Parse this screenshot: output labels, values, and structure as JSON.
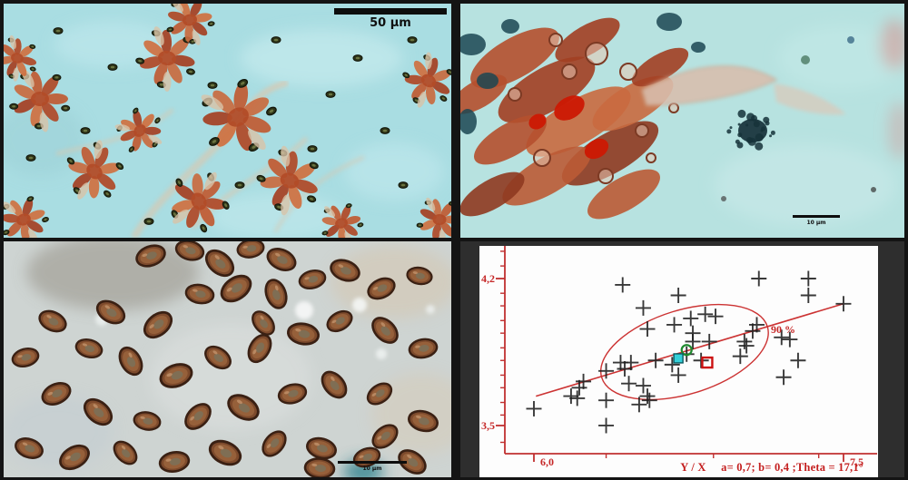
{
  "figure": {
    "title": "Four-panel mycological figure: stained micrographs and spore-measurement scatter plot",
    "panels": {
      "top_left": {
        "type": "micrograph",
        "scale_bar": "50 µm"
      },
      "top_right": {
        "type": "micrograph",
        "scale_bar": "10 µm"
      },
      "bottom_left": {
        "type": "micrograph",
        "scale_bar": "10 µm"
      },
      "bottom_right": {
        "type": "scatter-plot"
      }
    }
  },
  "chart_data": {
    "type": "scatter",
    "title": "",
    "xlabel": "",
    "ylabel": "",
    "grid": false,
    "legend_position": "none",
    "xlim": [
      5.74,
      7.67
    ],
    "ylim": [
      3.33,
      4.36
    ],
    "x_ticks": [
      {
        "value": 6.0,
        "label": "6,0"
      },
      {
        "value": 7.5,
        "label": "7,5"
      }
    ],
    "y_ticks": [
      {
        "value": 4.2,
        "label": "4,2"
      },
      {
        "value": 3.5,
        "label": "3,5"
      }
    ],
    "x_minor_ticks": [
      6.35,
      6.87,
      7.38
    ],
    "y_minor_ticks": [
      4.33,
      4.26,
      4.13,
      4.07,
      4.0,
      3.94,
      3.87,
      3.81,
      3.74,
      3.68,
      3.61,
      3.55,
      3.42
    ],
    "points": [
      [
        6.43,
        4.17
      ],
      [
        6.53,
        4.06
      ],
      [
        6.7,
        4.12
      ],
      [
        6.68,
        3.98
      ],
      [
        6.55,
        3.96
      ],
      [
        6.76,
        4.01
      ],
      [
        6.83,
        4.03
      ],
      [
        6.88,
        4.02
      ],
      [
        6.77,
        3.94
      ],
      [
        6.77,
        3.9
      ],
      [
        7.09,
        4.2
      ],
      [
        7.33,
        4.2
      ],
      [
        7.33,
        4.12
      ],
      [
        7.5,
        4.08
      ],
      [
        7.08,
        3.98
      ],
      [
        7.06,
        3.95
      ],
      [
        7.2,
        3.92
      ],
      [
        7.24,
        3.91
      ],
      [
        7.02,
        3.9
      ],
      [
        7.03,
        3.88
      ],
      [
        6.85,
        3.9
      ],
      [
        7.0,
        3.83
      ],
      [
        7.28,
        3.81
      ],
      [
        7.21,
        3.73
      ],
      [
        6.0,
        3.58
      ],
      [
        6.18,
        3.64
      ],
      [
        6.21,
        3.63
      ],
      [
        6.22,
        3.68
      ],
      [
        6.24,
        3.71
      ],
      [
        6.35,
        3.76
      ],
      [
        6.35,
        3.62
      ],
      [
        6.35,
        3.5
      ],
      [
        6.42,
        3.8
      ],
      [
        6.47,
        3.8
      ],
      [
        6.44,
        3.77
      ],
      [
        6.55,
        3.64
      ],
      [
        6.56,
        3.62
      ],
      [
        6.46,
        3.7
      ],
      [
        6.51,
        3.6
      ],
      [
        6.53,
        3.69
      ],
      [
        6.7,
        3.74
      ],
      [
        6.81,
        3.81
      ],
      [
        6.74,
        3.84
      ],
      [
        6.59,
        3.81
      ],
      [
        6.67,
        3.79
      ]
    ],
    "regression_line": {
      "x1": 6.01,
      "y1": 3.64,
      "x2": 7.5,
      "y2": 4.08
    },
    "confidence_ellipse": {
      "cx": 6.73,
      "cy": 3.85,
      "rx": 0.42,
      "ry": 0.2,
      "theta_deg": 17.1,
      "label": "90 %"
    },
    "special_markers": [
      {
        "shape": "open-circle",
        "color": "#1e8a2e",
        "x": 6.74,
        "y": 3.86
      },
      {
        "shape": "filled-square",
        "color": "#35d0d9",
        "x": 6.7,
        "y": 3.82
      },
      {
        "shape": "open-square",
        "color": "#cc1111",
        "x": 6.84,
        "y": 3.8
      }
    ],
    "caption": "Y / X     a= 0,7; b= 0,4 ;Theta = 17,1°",
    "colors": {
      "axis": "#c03030",
      "points": "#1f1f1f",
      "line": "#cc3333",
      "ellipse": "#cc3333",
      "labels": "#c62828"
    }
  }
}
